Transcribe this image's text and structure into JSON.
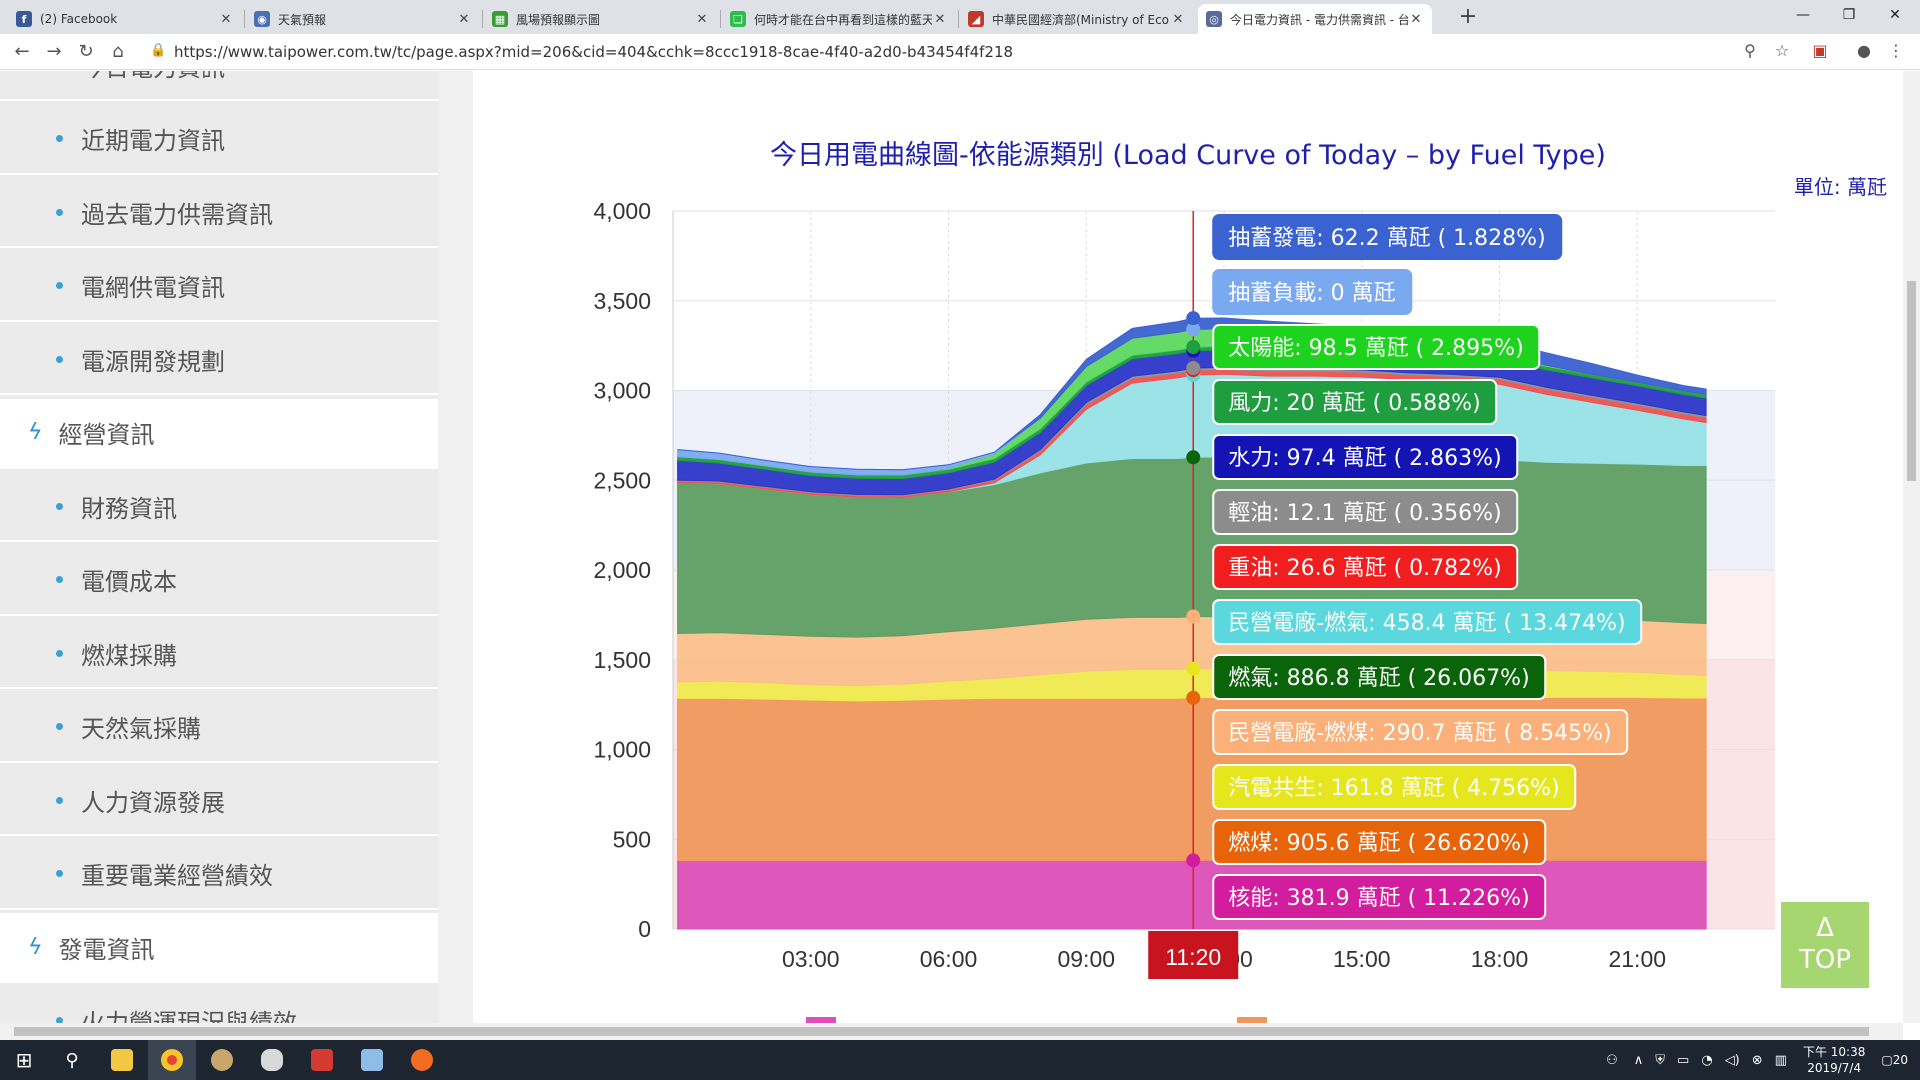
{
  "browser": {
    "tabs": [
      {
        "label": "(2) Facebook",
        "icon": "facebook-icon",
        "color": "#3b5998",
        "glyph": "f"
      },
      {
        "label": "天氣預報",
        "icon": "eye-icon",
        "color": "#4a6fb5",
        "glyph": "◉"
      },
      {
        "label": "風場預報顯示圖",
        "icon": "map-icon",
        "color": "#3a9a3a",
        "glyph": "▦"
      },
      {
        "label": "何時才能在台中再看到這樣的藍天",
        "icon": "chat-icon",
        "color": "#2dbd4a",
        "glyph": "❑"
      },
      {
        "label": "中華民國經濟部(Ministry of Eco",
        "icon": "moea-icon",
        "color": "#c0392b",
        "glyph": "◢"
      },
      {
        "label": "今日電力資訊 - 電力供需資訊 - 台",
        "icon": "taipower-icon",
        "color": "#5a6a9a",
        "glyph": "◎"
      }
    ],
    "url": "https://www.taipower.com.tw/tc/page.aspx?mid=206&cid=404&cchk=8ccc1918-8cae-4f40-a2d0-b43454f4f218"
  },
  "sidebar": {
    "items": [
      {
        "label": "今日電力資訊",
        "type": "sub"
      },
      {
        "label": "近期電力資訊",
        "type": "sub"
      },
      {
        "label": "過去電力供需資訊",
        "type": "sub"
      },
      {
        "label": "電網供電資訊",
        "type": "sub"
      },
      {
        "label": "電源開發規劃",
        "type": "sub"
      },
      {
        "label": "經營資訊",
        "type": "cat"
      },
      {
        "label": "財務資訊",
        "type": "sub"
      },
      {
        "label": "電價成本",
        "type": "sub"
      },
      {
        "label": "燃煤採購",
        "type": "sub"
      },
      {
        "label": "天然氣採購",
        "type": "sub"
      },
      {
        "label": "人力資源發展",
        "type": "sub"
      },
      {
        "label": "重要電業經營績效",
        "type": "sub"
      },
      {
        "label": "發電資訊",
        "type": "cat"
      },
      {
        "label": "火力營運現況與績效",
        "type": "sub"
      }
    ]
  },
  "chart_data": {
    "type": "area",
    "title": "今日用電曲線圖-依能源類別 (Load Curve of Today – by Fuel Type)",
    "unit_label": "單位: 萬瓩",
    "ylim": [
      0,
      4000
    ],
    "yticks": [
      "0",
      "500",
      "1,000",
      "1,500",
      "2,000",
      "2,500",
      "3,000",
      "3,500",
      "4,000"
    ],
    "xticks": [
      "03:00",
      "06:00",
      "09:00",
      "12:00",
      "15:00",
      "18:00",
      "21:00"
    ],
    "x_hours": [
      0.1,
      1,
      2,
      3,
      4,
      5,
      6,
      7,
      8,
      9,
      10,
      11,
      11.33,
      12,
      13,
      14,
      15,
      16,
      17,
      18,
      19,
      20,
      21,
      22,
      22.5
    ],
    "cursor_time": "11:20",
    "cursor_hour": 11.33,
    "grid": true,
    "series": [
      {
        "name": "核能",
        "color": "#dc4fb8",
        "values": [
          381,
          381,
          381,
          381,
          381,
          381,
          381,
          381,
          381,
          381,
          381,
          381,
          382,
          382,
          382,
          382,
          382,
          382,
          382,
          382,
          382,
          382,
          382,
          382,
          382
        ]
      },
      {
        "name": "燃煤",
        "color": "#f0985c",
        "values": [
          905,
          905,
          900,
          895,
          890,
          893,
          900,
          905,
          905,
          905,
          905,
          905,
          906,
          908,
          908,
          908,
          908,
          908,
          908,
          908,
          908,
          908,
          908,
          905,
          905
        ]
      },
      {
        "name": "汽電共生",
        "color": "#f0ea4f",
        "values": [
          90,
          95,
          90,
          85,
          85,
          90,
          100,
          110,
          130,
          150,
          160,
          160,
          162,
          160,
          160,
          160,
          160,
          160,
          160,
          155,
          150,
          145,
          140,
          130,
          125
        ]
      },
      {
        "name": "民營電廠-燃煤",
        "color": "#fbbf8c",
        "values": [
          270,
          270,
          270,
          270,
          270,
          270,
          275,
          280,
          285,
          290,
          290,
          290,
          291,
          290,
          290,
          290,
          290,
          290,
          290,
          290,
          290,
          290,
          290,
          290,
          290
        ]
      },
      {
        "name": "燃氣",
        "color": "#5e9e63",
        "values": [
          840,
          830,
          810,
          790,
          780,
          770,
          780,
          800,
          840,
          870,
          885,
          885,
          887,
          890,
          890,
          890,
          885,
          880,
          880,
          880,
          870,
          870,
          870,
          875,
          880
        ]
      },
      {
        "name": "民營電廠-燃氣",
        "color": "#96e2e6",
        "values": [
          0,
          0,
          0,
          0,
          0,
          0,
          0,
          10,
          100,
          300,
          420,
          450,
          458,
          460,
          450,
          450,
          450,
          440,
          430,
          420,
          380,
          340,
          300,
          260,
          240
        ]
      },
      {
        "name": "重油",
        "color": "#f05050",
        "values": [
          10,
          10,
          10,
          10,
          10,
          10,
          10,
          15,
          20,
          25,
          26,
          26,
          27,
          27,
          27,
          27,
          27,
          27,
          27,
          27,
          27,
          27,
          27,
          27,
          27
        ]
      },
      {
        "name": "輕油",
        "color": "#909090",
        "values": [
          5,
          5,
          5,
          5,
          5,
          5,
          5,
          5,
          10,
          12,
          12,
          12,
          12,
          12,
          12,
          12,
          12,
          12,
          12,
          12,
          12,
          12,
          12,
          12,
          12
        ]
      },
      {
        "name": "水力",
        "color": "#2c36c8",
        "values": [
          110,
          100,
          95,
          90,
          90,
          90,
          90,
          95,
          95,
          95,
          97,
          97,
          97,
          97,
          97,
          97,
          97,
          97,
          97,
          97,
          97,
          97,
          97,
          97,
          97
        ]
      },
      {
        "name": "風力",
        "color": "#1e9e3e",
        "values": [
          20,
          20,
          20,
          20,
          20,
          20,
          20,
          20,
          20,
          20,
          20,
          20,
          20,
          20,
          20,
          20,
          20,
          20,
          20,
          20,
          20,
          20,
          20,
          20,
          20
        ]
      },
      {
        "name": "太陽能",
        "color": "#5ed85e",
        "values": [
          0,
          0,
          0,
          0,
          0,
          0,
          5,
          25,
          60,
          85,
          95,
          98,
          99,
          98,
          95,
          85,
          75,
          60,
          40,
          20,
          5,
          0,
          0,
          0,
          0
        ]
      },
      {
        "name": "抽蓄負載",
        "color": "#7aa9f0",
        "values": [
          40,
          35,
          30,
          30,
          30,
          30,
          20,
          10,
          0,
          0,
          0,
          0,
          0,
          0,
          0,
          0,
          0,
          0,
          0,
          0,
          0,
          0,
          0,
          0,
          0
        ]
      },
      {
        "name": "抽蓄發電",
        "color": "#3a62d0",
        "values": [
          0,
          0,
          0,
          0,
          0,
          0,
          0,
          0,
          20,
          40,
          55,
          60,
          62,
          60,
          55,
          50,
          50,
          55,
          60,
          70,
          70,
          60,
          40,
          30,
          30
        ]
      }
    ],
    "tooltip": {
      "time": "11:20",
      "entries": [
        {
          "text": "抽蓄發電: 62.2 萬瓩 ( 1.828%)",
          "bg": "#3a62d0",
          "fg": "#ffffff",
          "border": "#3a62d0"
        },
        {
          "text": "抽蓄負載: 0 萬瓩",
          "bg": "#7aa9f0",
          "fg": "#ffffff",
          "border": "#7aa9f0"
        },
        {
          "text": "太陽能: 98.5 萬瓩 ( 2.895%)",
          "bg": "#1ed31e",
          "fg": "#ffffff",
          "border": "#ffffff"
        },
        {
          "text": "風力: 20 萬瓩 ( 0.588%)",
          "bg": "#1e9e3e",
          "fg": "#ffffff",
          "border": "#ffffff"
        },
        {
          "text": "水力: 97.4 萬瓩 ( 2.863%)",
          "bg": "#1414b4",
          "fg": "#ffffff",
          "border": "#ffffff"
        },
        {
          "text": "輕油: 12.1 萬瓩 ( 0.356%)",
          "bg": "#8c8c8c",
          "fg": "#ffffff",
          "border": "#ffffff"
        },
        {
          "text": "重油: 26.6 萬瓩 ( 0.782%)",
          "bg": "#f01e1e",
          "fg": "#ffffff",
          "border": "#ffffff"
        },
        {
          "text": "民營電廠-燃氣: 458.4 萬瓩 ( 13.474%)",
          "bg": "#5ad8de",
          "fg": "#ffffff",
          "border": "#ffffff"
        },
        {
          "text": "燃氣: 886.8 萬瓩 ( 26.067%)",
          "bg": "#0a640a",
          "fg": "#ffffff",
          "border": "#ffffff"
        },
        {
          "text": "民營電廠-燃煤: 290.7 萬瓩 ( 8.545%)",
          "bg": "#fbb07a",
          "fg": "#ffffff",
          "border": "#ffffff"
        },
        {
          "text": "汽電共生: 161.8 萬瓩 ( 4.756%)",
          "bg": "#e6e61e",
          "fg": "#ffffff",
          "border": "#ffffff"
        },
        {
          "text": "燃煤: 905.6 萬瓩 ( 26.620%)",
          "bg": "#e8640a",
          "fg": "#ffffff",
          "border": "#ffffff"
        },
        {
          "text": "核能: 381.9 萬瓩 ( 11.226%)",
          "bg": "#d21e9e",
          "fg": "#ffffff",
          "border": "#ffffff"
        }
      ]
    }
  },
  "top_button": {
    "arrow": "Δ",
    "label": "TOP"
  },
  "taskbar": {
    "clock_time": "下午 10:38",
    "clock_date": "2019/7/4",
    "notification_count": "20"
  }
}
